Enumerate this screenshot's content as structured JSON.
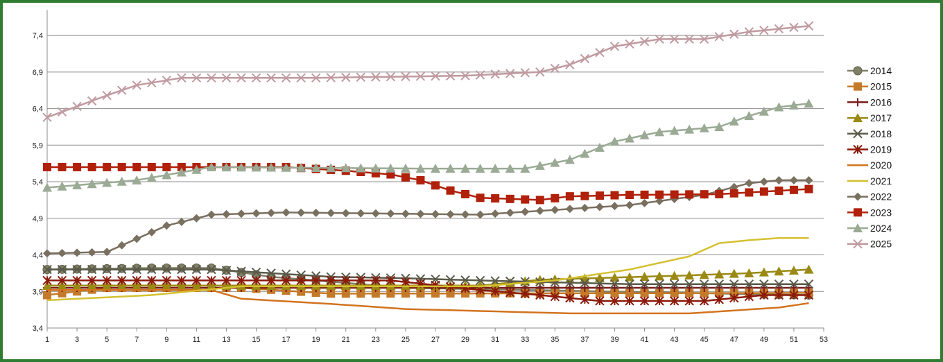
{
  "chart_data": {
    "type": "line",
    "x_range": [
      1,
      53
    ],
    "x_ticks": [
      1,
      3,
      5,
      7,
      9,
      11,
      13,
      15,
      17,
      19,
      21,
      23,
      25,
      27,
      29,
      31,
      33,
      35,
      37,
      39,
      41,
      43,
      45,
      47,
      49,
      51,
      53
    ],
    "y_range": [
      3.4,
      7.6
    ],
    "y_ticks": [
      "3,4",
      "3,9",
      "4,4",
      "4,9",
      "5,4",
      "5,9",
      "6,4",
      "6,9",
      "7,4"
    ],
    "grid": "horizontal",
    "legend_position": "right",
    "series": [
      {
        "name": "2014",
        "color": "#808066",
        "marker": "circle",
        "knots": [
          [
            1,
            4.2
          ],
          [
            8,
            4.22
          ],
          [
            12,
            4.22
          ],
          [
            16,
            4.1
          ],
          [
            25,
            3.95
          ],
          [
            52,
            3.85
          ]
        ]
      },
      {
        "name": "2015",
        "color": "#c47a28",
        "marker": "square",
        "knots": [
          [
            1,
            3.85
          ],
          [
            5,
            3.95
          ],
          [
            14,
            3.95
          ],
          [
            20,
            3.87
          ],
          [
            52,
            3.88
          ]
        ]
      },
      {
        "name": "2016",
        "color": "#7a1a1a",
        "marker": "plus",
        "knots": [
          [
            1,
            3.95
          ],
          [
            52,
            3.95
          ]
        ]
      },
      {
        "name": "2017",
        "color": "#9a8a14",
        "marker": "triangle",
        "knots": [
          [
            1,
            3.98
          ],
          [
            30,
            3.98
          ],
          [
            34,
            4.06
          ],
          [
            44,
            4.12
          ],
          [
            48,
            4.15
          ],
          [
            52,
            4.2
          ]
        ]
      },
      {
        "name": "2018",
        "color": "#5a5a4a",
        "marker": "x",
        "knots": [
          [
            1,
            4.2
          ],
          [
            12,
            4.2
          ],
          [
            20,
            4.1
          ],
          [
            25,
            4.08
          ],
          [
            30,
            4.05
          ],
          [
            40,
            4.0
          ],
          [
            52,
            4.0
          ]
        ]
      },
      {
        "name": "2019",
        "color": "#8b1a0a",
        "marker": "star",
        "knots": [
          [
            1,
            4.05
          ],
          [
            24,
            4.05
          ],
          [
            30,
            3.92
          ],
          [
            34,
            3.85
          ],
          [
            38,
            3.77
          ],
          [
            45,
            3.77
          ],
          [
            49,
            3.85
          ],
          [
            52,
            3.85
          ]
        ]
      },
      {
        "name": "2020",
        "color": "#d2731e",
        "marker": "none",
        "knots": [
          [
            1,
            3.92
          ],
          [
            12,
            3.92
          ],
          [
            14,
            3.8
          ],
          [
            20,
            3.73
          ],
          [
            25,
            3.66
          ],
          [
            36,
            3.6
          ],
          [
            44,
            3.6
          ],
          [
            50,
            3.68
          ],
          [
            52,
            3.74
          ]
        ]
      },
      {
        "name": "2021",
        "color": "#d4c030",
        "marker": "none",
        "knots": [
          [
            1,
            3.78
          ],
          [
            8,
            3.85
          ],
          [
            14,
            3.97
          ],
          [
            30,
            3.97
          ],
          [
            35,
            4.05
          ],
          [
            40,
            4.2
          ],
          [
            44,
            4.38
          ],
          [
            46,
            4.56
          ],
          [
            48,
            4.6
          ],
          [
            50,
            4.63
          ],
          [
            52,
            4.63
          ]
        ]
      },
      {
        "name": "2022",
        "color": "#7a7060",
        "marker": "diamond",
        "knots": [
          [
            1,
            4.42
          ],
          [
            5,
            4.44
          ],
          [
            9,
            4.8
          ],
          [
            12,
            4.95
          ],
          [
            17,
            4.98
          ],
          [
            30,
            4.95
          ],
          [
            40,
            5.08
          ],
          [
            45,
            5.22
          ],
          [
            48,
            5.38
          ],
          [
            50,
            5.42
          ],
          [
            52,
            5.42
          ]
        ]
      },
      {
        "name": "2023",
        "color": "#b0200a",
        "marker": "square",
        "knots": [
          [
            1,
            5.6
          ],
          [
            12,
            5.6
          ],
          [
            17,
            5.6
          ],
          [
            21,
            5.55
          ],
          [
            24,
            5.5
          ],
          [
            26,
            5.42
          ],
          [
            28,
            5.28
          ],
          [
            30,
            5.18
          ],
          [
            34,
            5.15
          ],
          [
            36,
            5.2
          ],
          [
            40,
            5.22
          ],
          [
            46,
            5.23
          ],
          [
            52,
            5.3
          ]
        ]
      },
      {
        "name": "2024",
        "color": "#9aaa94",
        "marker": "triangle",
        "knots": [
          [
            1,
            5.32
          ],
          [
            7,
            5.42
          ],
          [
            12,
            5.6
          ],
          [
            26,
            5.58
          ],
          [
            33,
            5.58
          ],
          [
            36,
            5.7
          ],
          [
            39,
            5.95
          ],
          [
            42,
            6.08
          ],
          [
            46,
            6.15
          ],
          [
            48,
            6.3
          ],
          [
            50,
            6.42
          ],
          [
            52,
            6.47
          ]
        ]
      },
      {
        "name": "2025",
        "color": "#c09aa0",
        "marker": "x",
        "knots": [
          [
            1,
            6.28
          ],
          [
            5,
            6.58
          ],
          [
            7,
            6.72
          ],
          [
            10,
            6.82
          ],
          [
            19,
            6.82
          ],
          [
            29,
            6.85
          ],
          [
            34,
            6.9
          ],
          [
            36,
            7.0
          ],
          [
            39,
            7.25
          ],
          [
            42,
            7.35
          ],
          [
            45,
            7.35
          ],
          [
            48,
            7.45
          ],
          [
            52,
            7.53
          ]
        ]
      }
    ]
  }
}
